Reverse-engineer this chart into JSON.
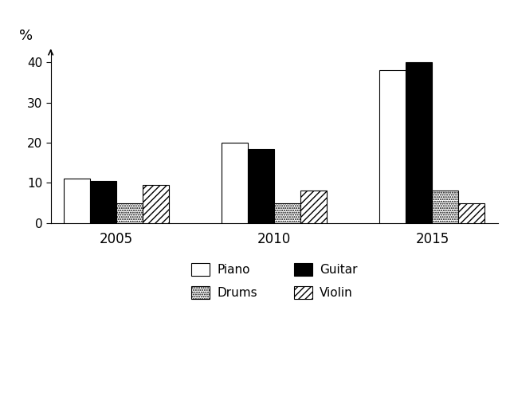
{
  "years": [
    "2005",
    "2010",
    "2015"
  ],
  "instruments": [
    "Piano",
    "Guitar",
    "Drums",
    "Violin"
  ],
  "values": {
    "Piano": [
      11,
      20,
      38
    ],
    "Guitar": [
      10.5,
      18.5,
      40
    ],
    "Drums": [
      5,
      5,
      8
    ],
    "Violin": [
      9.5,
      8,
      5
    ]
  },
  "bar_styles": {
    "Piano": {
      "facecolor": "white",
      "edgecolor": "black",
      "hatch": ""
    },
    "Guitar": {
      "facecolor": "black",
      "edgecolor": "black",
      "hatch": ""
    },
    "Drums": {
      "facecolor": "white",
      "edgecolor": "black",
      "hatch": "......"
    },
    "Violin": {
      "facecolor": "white",
      "edgecolor": "black",
      "hatch": "////"
    }
  },
  "ylim": [
    0,
    43
  ],
  "yticks": [
    0,
    10,
    20,
    30,
    40
  ],
  "ylabel": "%",
  "background_color": "#ffffff",
  "bar_width": 0.2,
  "legend_rows": [
    [
      "Piano",
      "Drums"
    ],
    [
      "Guitar",
      "Violin"
    ]
  ]
}
